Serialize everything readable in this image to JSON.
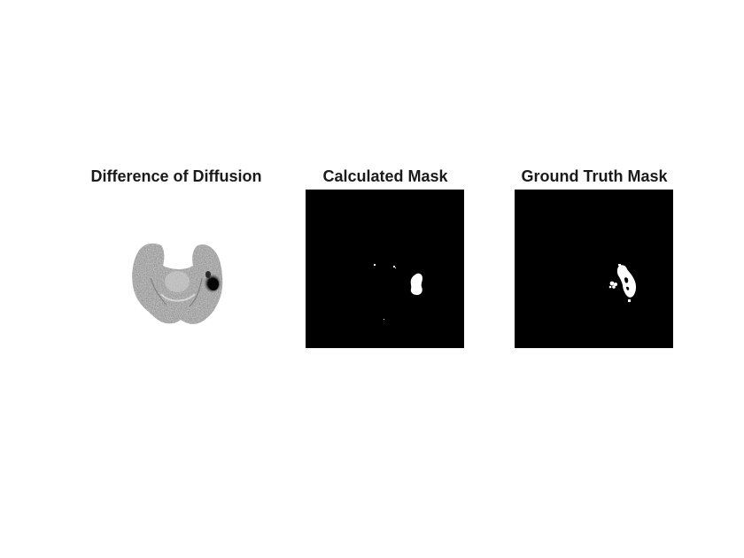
{
  "figure": {
    "panels": [
      {
        "title": "Difference of Diffusion",
        "image": "grayscale brain diffusion difference slice"
      },
      {
        "title": "Calculated Mask",
        "image": "binary segmentation mask"
      },
      {
        "title": "Ground Truth Mask",
        "image": "binary segmentation mask"
      }
    ],
    "colors": {
      "background": "#ffffff",
      "mask_background": "#000000",
      "mask_foreground": "#ffffff",
      "title_text": "#1a1a1a"
    }
  }
}
